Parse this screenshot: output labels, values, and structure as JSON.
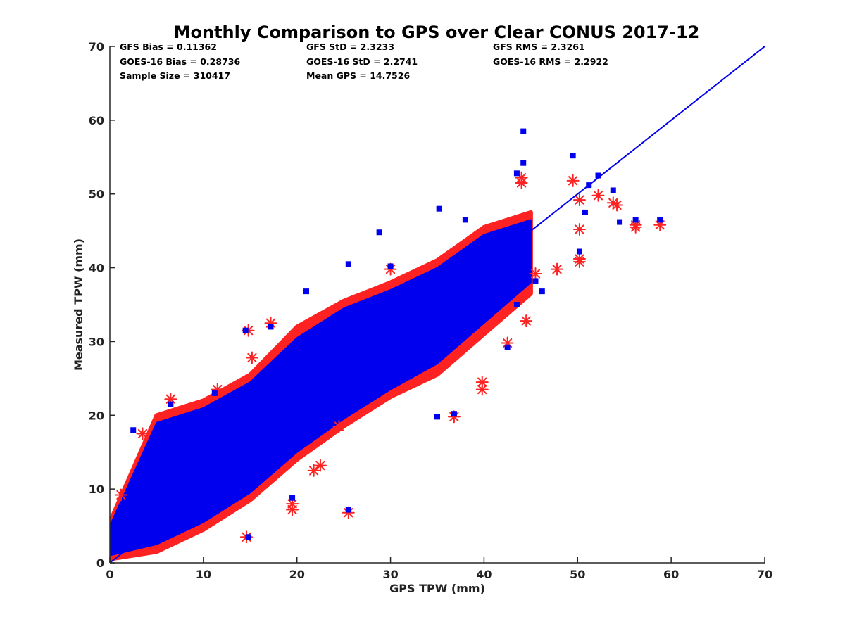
{
  "chart_data": {
    "type": "scatter",
    "title": "Monthly Comparison to GPS over Clear CONUS 2017-12",
    "xlabel": "GPS TPW (mm)",
    "ylabel": "Measured TPW (mm)",
    "xlim": [
      0,
      70
    ],
    "ylim": [
      0,
      70
    ],
    "xticks": [
      "0",
      "10",
      "20",
      "30",
      "40",
      "50",
      "60",
      "70"
    ],
    "yticks": [
      "0",
      "10",
      "20",
      "30",
      "40",
      "50",
      "60",
      "70"
    ],
    "grid": false,
    "stats": [
      [
        "GFS Bias = 0.11362",
        "GFS StD = 2.3233",
        "GFS RMS = 2.3261"
      ],
      [
        "GOES-16 Bias = 0.28736",
        "GOES-16 StD = 2.2741",
        "GOES-16 RMS = 2.2922"
      ],
      [
        "Sample Size = 310417",
        "Mean GPS = 14.7526"
      ]
    ],
    "reference_line": {
      "x": [
        0,
        70
      ],
      "y": [
        0,
        70
      ],
      "color": "#0000ee"
    },
    "series": [
      {
        "marker": "asterisk",
        "color": "#ff2222",
        "density_band": {
          "x": [
            0,
            5,
            10,
            15,
            20,
            25,
            30,
            35,
            40,
            45
          ],
          "y_low": [
            0.5,
            1.5,
            4.5,
            8.5,
            14.0,
            18.5,
            22.5,
            25.5,
            31.0,
            36.5
          ],
          "y_high": [
            5.5,
            20.0,
            22.0,
            25.5,
            32.0,
            35.5,
            38.0,
            41.0,
            45.5,
            47.5
          ]
        },
        "outliers": [
          [
            1.2,
            9.2
          ],
          [
            3.5,
            17.5
          ],
          [
            6.5,
            22.2
          ],
          [
            11.5,
            23.5
          ],
          [
            14.8,
            31.5
          ],
          [
            15.2,
            27.8
          ],
          [
            17.2,
            32.5
          ],
          [
            14.6,
            3.5
          ],
          [
            19.5,
            8.0
          ],
          [
            19.5,
            7.2
          ],
          [
            21.8,
            12.5
          ],
          [
            22.5,
            13.2
          ],
          [
            25.5,
            6.8
          ],
          [
            30.0,
            39.8
          ],
          [
            36.8,
            19.8
          ],
          [
            42.5,
            29.8
          ],
          [
            44.5,
            32.8
          ],
          [
            44.0,
            52.2
          ],
          [
            44.0,
            51.5
          ],
          [
            49.5,
            51.8
          ],
          [
            50.2,
            49.2
          ],
          [
            52.2,
            49.8
          ],
          [
            53.8,
            48.8
          ],
          [
            54.2,
            48.5
          ],
          [
            56.2,
            45.8
          ],
          [
            56.2,
            45.5
          ],
          [
            58.8,
            45.8
          ],
          [
            50.2,
            45.2
          ],
          [
            50.2,
            41.2
          ],
          [
            50.2,
            40.8
          ],
          [
            47.8,
            39.8
          ],
          [
            45.5,
            39.2
          ],
          [
            24.5,
            18.5
          ],
          [
            39.8,
            23.5
          ],
          [
            39.8,
            24.5
          ]
        ]
      },
      {
        "marker": "square",
        "color": "#0000ee",
        "density_band": {
          "x": [
            0,
            5,
            10,
            15,
            20,
            25,
            30,
            35,
            40,
            45
          ],
          "y_low": [
            1.0,
            2.5,
            5.5,
            9.5,
            15.0,
            19.5,
            23.5,
            27.0,
            32.5,
            38.0
          ],
          "y_high": [
            5.0,
            19.0,
            21.0,
            24.5,
            30.5,
            34.5,
            37.0,
            40.0,
            44.5,
            46.5
          ]
        },
        "outliers": [
          [
            44.2,
            58.5
          ],
          [
            44.2,
            54.2
          ],
          [
            43.5,
            52.8
          ],
          [
            49.5,
            55.2
          ],
          [
            52.2,
            52.5
          ],
          [
            51.2,
            51.2
          ],
          [
            53.8,
            50.5
          ],
          [
            54.5,
            46.2
          ],
          [
            56.2,
            46.5
          ],
          [
            58.8,
            46.5
          ],
          [
            50.8,
            47.5
          ],
          [
            50.2,
            42.2
          ],
          [
            28.8,
            44.8
          ],
          [
            25.5,
            40.5
          ],
          [
            35.2,
            48.0
          ],
          [
            38.0,
            46.5
          ],
          [
            21.0,
            36.8
          ],
          [
            14.8,
            3.5
          ],
          [
            25.5,
            7.2
          ],
          [
            19.5,
            8.8
          ],
          [
            14.5,
            31.5
          ],
          [
            17.2,
            32.0
          ],
          [
            11.2,
            23.0
          ],
          [
            2.5,
            18.0
          ],
          [
            6.5,
            21.5
          ],
          [
            42.5,
            29.2
          ],
          [
            45.5,
            38.2
          ],
          [
            36.8,
            20.2
          ],
          [
            35.0,
            19.8
          ],
          [
            30.0,
            40.2
          ],
          [
            43.5,
            35.0
          ],
          [
            46.2,
            36.8
          ]
        ]
      }
    ]
  }
}
